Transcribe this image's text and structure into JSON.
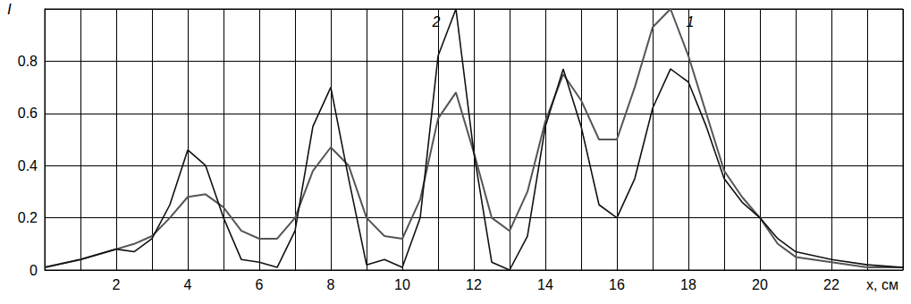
{
  "chart_data": {
    "type": "line",
    "xlabel": "x, см",
    "ylabel": "I",
    "x": [
      0,
      1,
      2,
      2.5,
      3,
      3.5,
      4,
      4.5,
      5,
      5.5,
      6,
      6.5,
      7,
      7.5,
      8,
      8.5,
      9,
      9.5,
      10,
      10.5,
      11,
      11.5,
      12,
      12.5,
      13,
      13.5,
      14,
      14.5,
      15,
      15.5,
      16,
      16.5,
      17,
      17.5,
      18,
      18.5,
      19,
      19.5,
      20,
      20.5,
      21,
      22,
      23,
      24
    ],
    "series": [
      {
        "name": "1",
        "color": "#555555",
        "values": [
          0.01,
          0.04,
          0.08,
          0.1,
          0.13,
          0.2,
          0.28,
          0.29,
          0.24,
          0.15,
          0.12,
          0.12,
          0.2,
          0.38,
          0.47,
          0.4,
          0.2,
          0.13,
          0.12,
          0.27,
          0.58,
          0.68,
          0.45,
          0.2,
          0.15,
          0.3,
          0.57,
          0.75,
          0.65,
          0.5,
          0.5,
          0.7,
          0.93,
          1.0,
          0.82,
          0.6,
          0.38,
          0.28,
          0.2,
          0.1,
          0.05,
          0.03,
          0.01,
          0.01
        ]
      },
      {
        "name": "2",
        "color": "#111111",
        "values": [
          0.01,
          0.04,
          0.08,
          0.07,
          0.12,
          0.25,
          0.46,
          0.4,
          0.2,
          0.04,
          0.03,
          0.01,
          0.15,
          0.55,
          0.7,
          0.35,
          0.02,
          0.04,
          0.01,
          0.2,
          0.82,
          1.0,
          0.45,
          0.03,
          0.0,
          0.13,
          0.55,
          0.77,
          0.55,
          0.25,
          0.2,
          0.35,
          0.62,
          0.77,
          0.72,
          0.55,
          0.35,
          0.26,
          0.2,
          0.12,
          0.07,
          0.04,
          0.02,
          0.01
        ]
      }
    ],
    "xlim": [
      0,
      24
    ],
    "ylim": [
      0,
      1
    ],
    "xticks": [
      2,
      4,
      6,
      8,
      10,
      12,
      14,
      16,
      18,
      20,
      22
    ],
    "yticks": [
      0,
      0.2,
      0.4,
      0.6,
      0.8
    ],
    "grid": true
  }
}
